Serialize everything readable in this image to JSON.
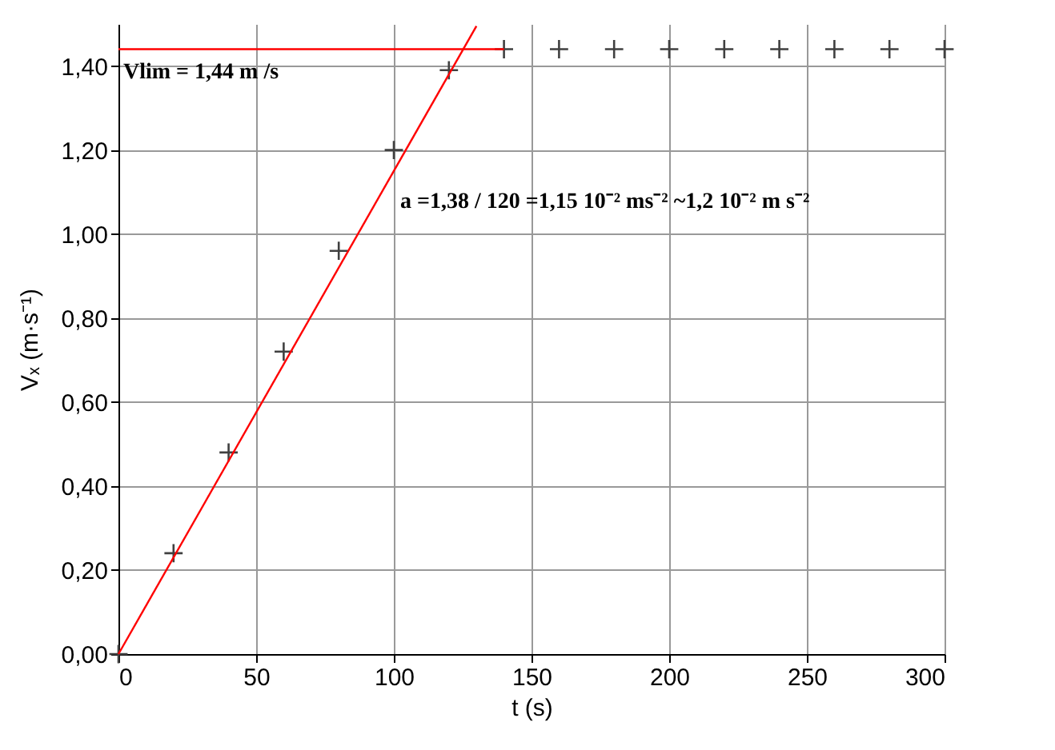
{
  "chart_data": {
    "type": "scatter",
    "xlabel": "t (s)",
    "ylabel": "Vₓ (m·s⁻¹)",
    "xlim": [
      0,
      300
    ],
    "xticks": [
      0,
      50,
      100,
      150,
      200,
      250,
      300
    ],
    "ylim": [
      0,
      1.5
    ],
    "yticks": [
      {
        "value": 0,
        "label": "0,00"
      },
      {
        "value": 0.2,
        "label": "0,20"
      },
      {
        "value": 0.4,
        "label": "0,40"
      },
      {
        "value": 0.6,
        "label": "0,60"
      },
      {
        "value": 0.8,
        "label": "0,80"
      },
      {
        "value": 1.0,
        "label": "1,00"
      },
      {
        "value": 1.2,
        "label": "1,20"
      },
      {
        "value": 1.4,
        "label": "1,40"
      }
    ],
    "grid": true,
    "series": [
      {
        "marker": "cross",
        "color": "#404040",
        "x": [
          0,
          20,
          40,
          60,
          80,
          100,
          120,
          140,
          160,
          180,
          200,
          220,
          240,
          260,
          280,
          300
        ],
        "values": [
          0,
          0.24,
          0.48,
          0.72,
          0.96,
          1.2,
          1.39,
          1.44,
          1.44,
          1.44,
          1.44,
          1.44,
          1.44,
          1.44,
          1.44,
          1.44
        ]
      },
      {
        "type": "line",
        "color": "#ff0000",
        "x": [
          0,
          130
        ],
        "values": [
          0,
          1.495
        ]
      },
      {
        "type": "line",
        "color": "#ff0000",
        "x": [
          0,
          140
        ],
        "values": [
          1.44,
          1.44
        ]
      }
    ],
    "annotations": [
      "Vlim = 1,44 m /s",
      "a =1,38 / 120 =1,15 10⁻² ms⁻² ~1,2 10⁻² m s⁻²"
    ]
  }
}
